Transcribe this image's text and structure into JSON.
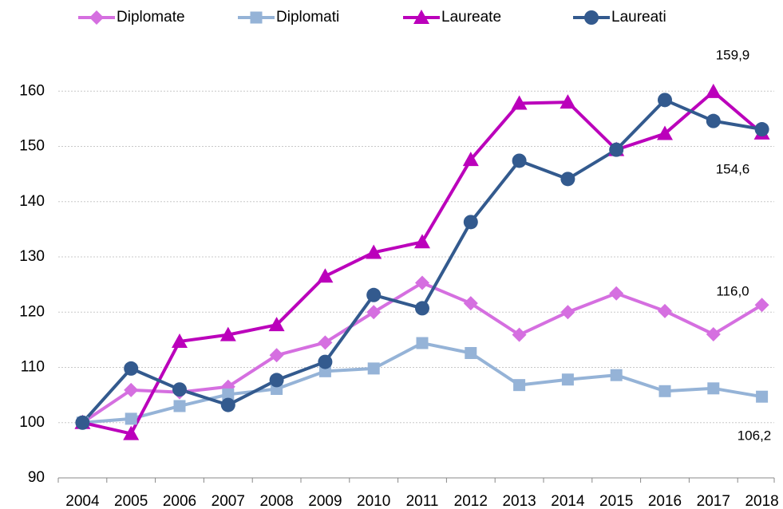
{
  "chart_data": {
    "type": "line",
    "categories": [
      "2004",
      "2005",
      "2006",
      "2007",
      "2008",
      "2009",
      "2010",
      "2011",
      "2012",
      "2013",
      "2014",
      "2015",
      "2016",
      "2017",
      "2018"
    ],
    "series": [
      {
        "name": "Diplomate",
        "color": "#d56fe0",
        "marker": "diamond",
        "values": [
          100,
          105.9,
          105.5,
          106.5,
          112.2,
          114.5,
          120.0,
          125.3,
          121.6,
          115.9,
          120.0,
          123.4,
          120.2,
          116.0,
          121.3
        ]
      },
      {
        "name": "Diplomati",
        "color": "#95b3d7",
        "marker": "square",
        "values": [
          100,
          100.7,
          103.0,
          105.1,
          106.1,
          109.3,
          109.8,
          114.4,
          112.6,
          106.8,
          107.8,
          108.6,
          105.7,
          106.2,
          104.7
        ]
      },
      {
        "name": "Laureate",
        "color": "#bb00bb",
        "marker": "triangle",
        "values": [
          100,
          98.0,
          114.7,
          115.9,
          117.7,
          126.5,
          130.8,
          132.7,
          147.6,
          157.8,
          158.0,
          149.4,
          152.3,
          159.9,
          152.4
        ]
      },
      {
        "name": "Laureati",
        "color": "#335a8e",
        "marker": "circle",
        "values": [
          100,
          109.8,
          106.0,
          103.2,
          107.7,
          111.0,
          123.1,
          120.7,
          136.3,
          147.4,
          144.1,
          149.4,
          158.4,
          154.6,
          153.1
        ]
      }
    ],
    "annotations": [
      "159,9",
      "154,6",
      "116,0",
      "106,2"
    ],
    "ylim": [
      90,
      163.5
    ],
    "yticks": [
      90,
      100,
      110,
      120,
      130,
      140,
      150,
      160
    ],
    "grid": true
  }
}
